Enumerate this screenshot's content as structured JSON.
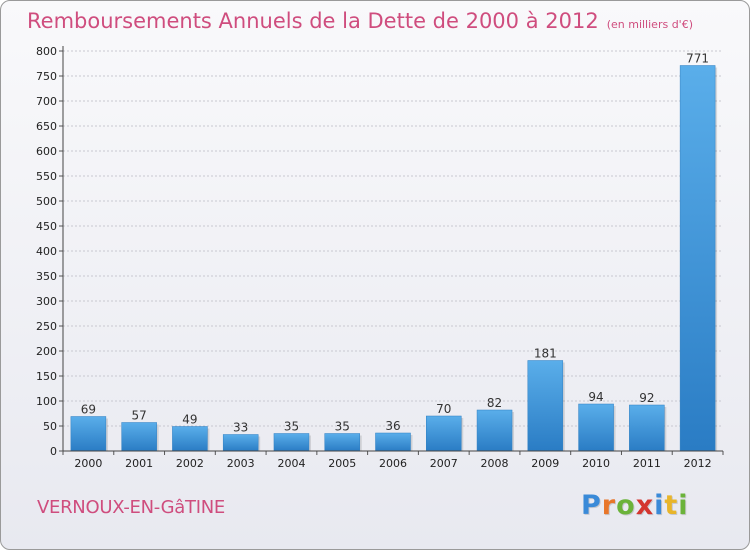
{
  "chart_data": {
    "type": "bar",
    "title": "Remboursements Annuels de la Dette de 2000 à 2012",
    "subtitle": "(en milliers d'€)",
    "categories": [
      "2000",
      "2001",
      "2002",
      "2003",
      "2004",
      "2005",
      "2006",
      "2007",
      "2008",
      "2009",
      "2010",
      "2011",
      "2012"
    ],
    "values": [
      69,
      57,
      49,
      33,
      35,
      35,
      36,
      70,
      82,
      181,
      94,
      92,
      771
    ],
    "ylim": [
      0,
      800
    ],
    "yticks": [
      0,
      50,
      100,
      150,
      200,
      250,
      300,
      350,
      400,
      450,
      500,
      550,
      600,
      650,
      700,
      750,
      800
    ],
    "grid": true,
    "bar_color": "#3c92d6"
  },
  "footer": {
    "commune": "VERNOUX-EN-GâTINE",
    "logo_letters": [
      "P",
      "r",
      "o",
      "x",
      "i",
      "t",
      "i"
    ],
    "logo_colors": [
      "#3a8ad8",
      "#e8762a",
      "#6bb33a",
      "#d4352f",
      "#3a8ad8",
      "#e8b52a",
      "#6bb33a"
    ]
  }
}
